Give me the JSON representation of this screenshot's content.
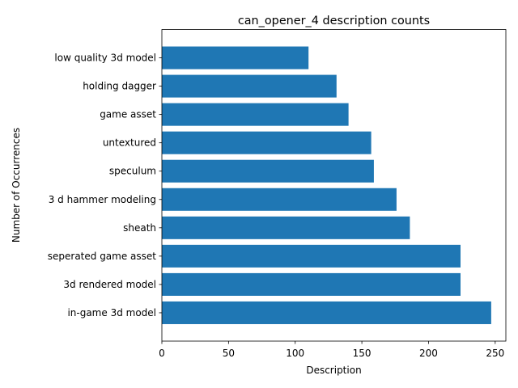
{
  "chart_data": {
    "type": "bar",
    "orientation": "horizontal",
    "title": "can_opener_4 description counts",
    "xlabel": "Description",
    "ylabel": "Number of Occurrences",
    "categories": [
      "in-game 3d model",
      "3d rendered model",
      "seperated game asset",
      "sheath",
      "3 d hammer modeling",
      "speculum",
      "untextured",
      "game asset",
      "holding dagger",
      "low quality 3d model"
    ],
    "values": [
      247,
      224,
      224,
      186,
      176,
      159,
      157,
      140,
      131,
      110
    ],
    "xlim": [
      0,
      258
    ],
    "xticks": [
      0,
      50,
      100,
      150,
      200,
      250
    ],
    "grid": false,
    "bar_color": "#1f77b4"
  }
}
